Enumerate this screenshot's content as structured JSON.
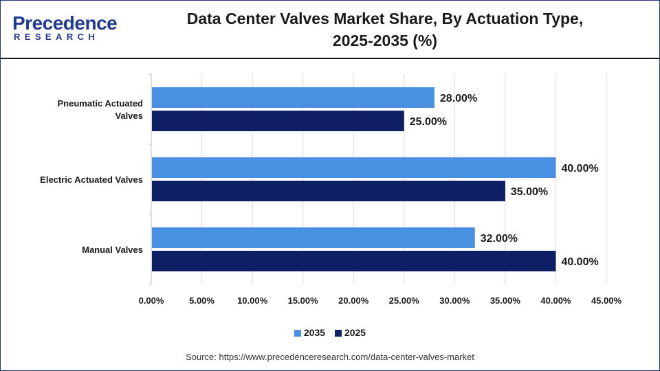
{
  "brand": {
    "logo_text": "Precedence",
    "logo_subtext": "RESEARCH"
  },
  "header": {
    "title_line1": "Data Center Valves Market Share, By Actuation Type,",
    "title_line2": "2025-2035 (%)"
  },
  "chart_data": {
    "type": "bar",
    "orientation": "horizontal",
    "categories": [
      "Pneumatic Actuated Valves",
      "Electric Actuated Valves",
      "Manual Valves"
    ],
    "category_label_lines": [
      [
        "Pneumatic Actuated",
        "Valves"
      ],
      [
        "Electric Actuated Valves"
      ],
      [
        "Manual Valves"
      ]
    ],
    "series": [
      {
        "name": "2035",
        "color": "#4a90e2",
        "values": [
          28,
          40,
          32
        ],
        "labels": [
          "28.00%",
          "40.00%",
          "32.00%"
        ]
      },
      {
        "name": "2025",
        "color": "#0f1f66",
        "values": [
          25,
          35,
          40
        ],
        "labels": [
          "25.00%",
          "35.00%",
          "40.00%"
        ]
      }
    ],
    "x_ticks": [
      0,
      5,
      10,
      15,
      20,
      25,
      30,
      35,
      40,
      45
    ],
    "x_tick_labels": [
      "0.00%",
      "5.00%",
      "10.00%",
      "15.00%",
      "20.00%",
      "25.00%",
      "30.00%",
      "35.00%",
      "40.00%",
      "45.00%"
    ],
    "xlim": [
      0,
      45
    ],
    "grid": true,
    "legend_position": "bottom"
  },
  "footer": {
    "source": "Source: https://www.precedenceresearch.com/data-center-valves-market"
  }
}
